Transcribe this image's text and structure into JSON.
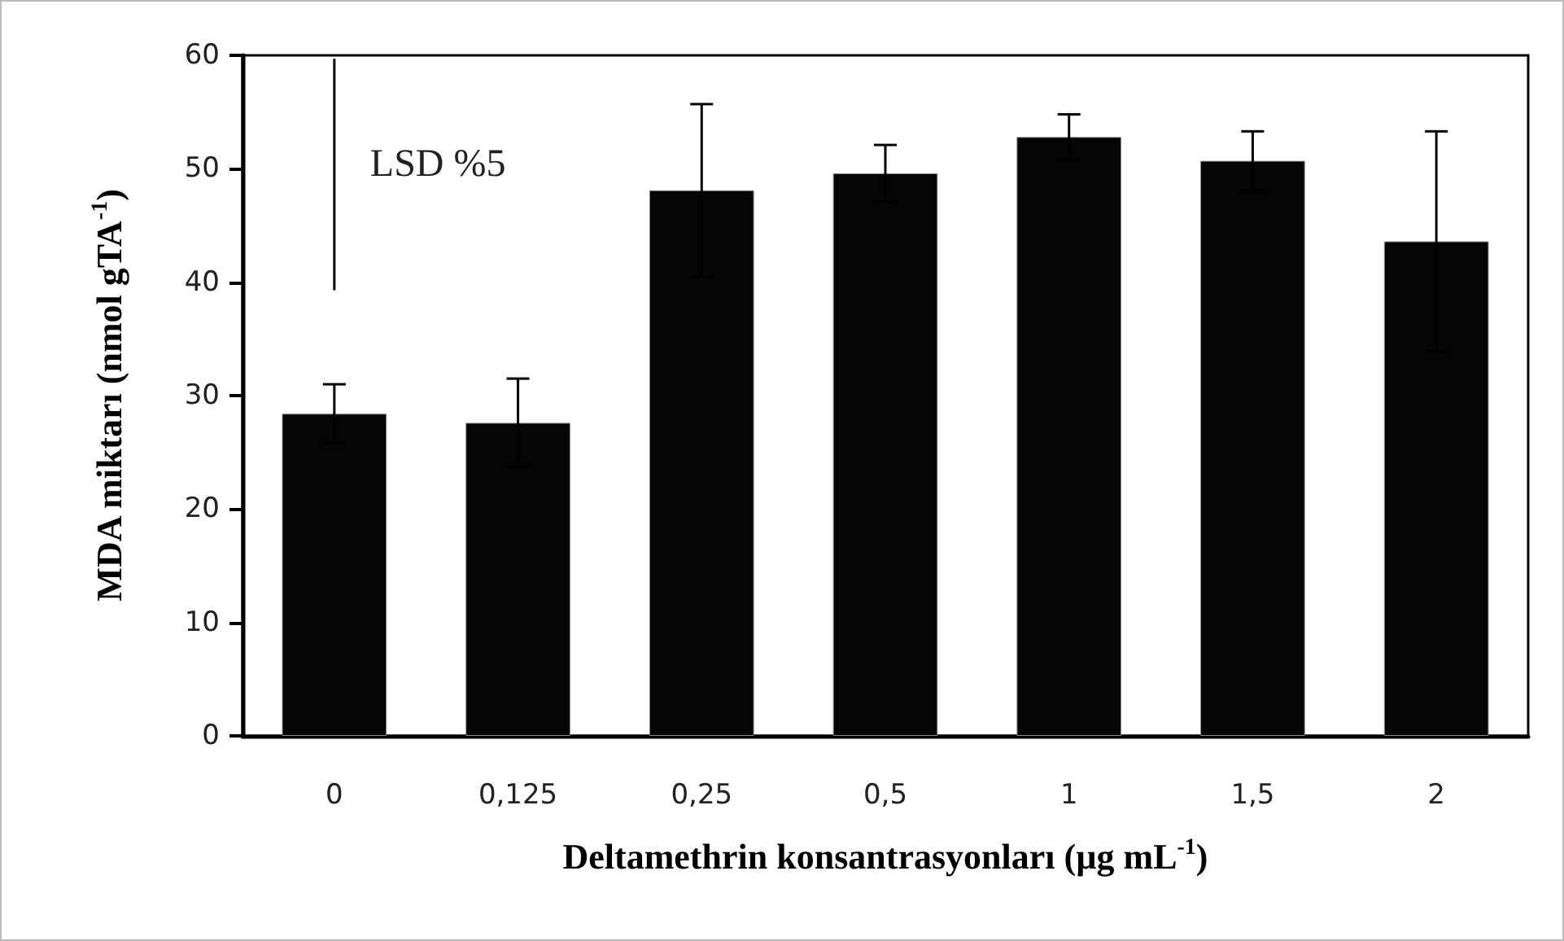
{
  "chart_data": {
    "type": "bar",
    "categories": [
      "0",
      "0,125",
      "0,25",
      "0,5",
      "1",
      "1,5",
      "2"
    ],
    "series": [
      {
        "color": "#050505",
        "values": [
          28.4,
          27.6,
          48.1,
          49.6,
          52.8,
          50.7,
          43.6
        ],
        "errors": [
          2.6,
          3.9,
          7.6,
          2.5,
          2.0,
          2.6,
          9.7
        ]
      },
      {
        "type": "line",
        "color": "#000000",
        "marker": "none",
        "x": [
          "0",
          "0"
        ],
        "values": [
          39.3,
          59.7
        ]
      }
    ],
    "xlabel": "Deltamethrin konsantrasyonları (µg mL$^{-1}$)",
    "ylabel": "MDA miktarı (nmol gTA$^{-1}$)",
    "annotations": [
      "LSD %5"
    ],
    "ylim": [
      0,
      60
    ],
    "yticks": [
      0,
      10,
      20,
      30,
      40,
      50,
      60
    ],
    "grid": false
  }
}
